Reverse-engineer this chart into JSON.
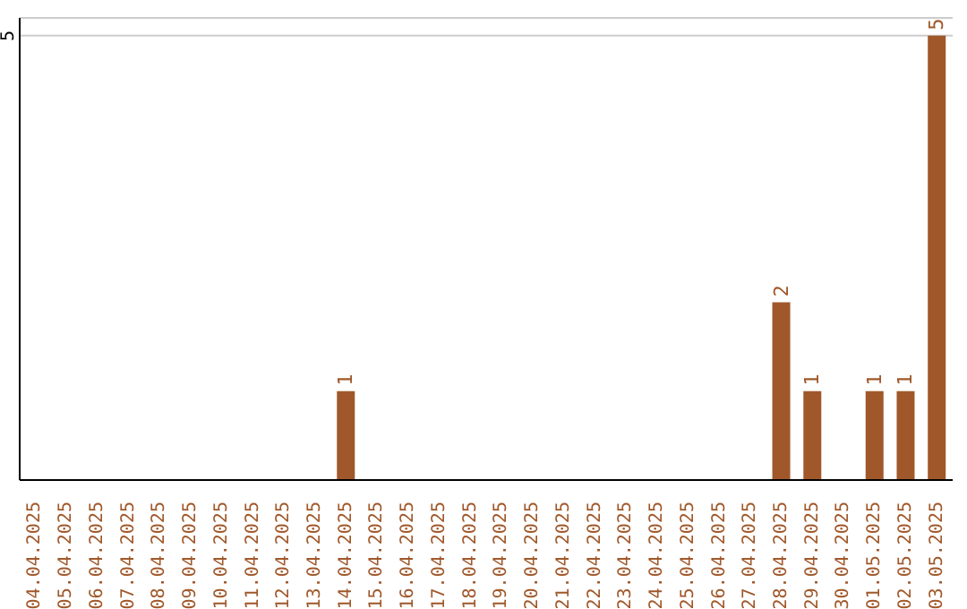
{
  "chart_data": {
    "type": "bar",
    "categories": [
      "04.04.2025",
      "05.04.2025",
      "06.04.2025",
      "07.04.2025",
      "08.04.2025",
      "09.04.2025",
      "10.04.2025",
      "11.04.2025",
      "12.04.2025",
      "13.04.2025",
      "14.04.2025",
      "15.04.2025",
      "16.04.2025",
      "17.04.2025",
      "18.04.2025",
      "19.04.2025",
      "20.04.2025",
      "21.04.2025",
      "22.04.2025",
      "23.04.2025",
      "24.04.2025",
      "25.04.2025",
      "26.04.2025",
      "27.04.2025",
      "28.04.2025",
      "29.04.2025",
      "30.04.2025",
      "01.05.2025",
      "02.05.2025",
      "03.05.2025"
    ],
    "values": [
      0,
      0,
      0,
      0,
      0,
      0,
      0,
      0,
      0,
      0,
      1,
      0,
      0,
      0,
      0,
      0,
      0,
      0,
      0,
      0,
      0,
      0,
      0,
      0,
      2,
      1,
      0,
      1,
      1,
      5
    ],
    "value_labels": [
      null,
      null,
      null,
      null,
      null,
      null,
      null,
      null,
      null,
      null,
      "1",
      null,
      null,
      null,
      null,
      null,
      null,
      null,
      null,
      null,
      null,
      null,
      null,
      null,
      "2",
      "1",
      null,
      "1",
      "1",
      "5"
    ],
    "color": "#a0582a",
    "ylim": [
      0,
      5.2
    ],
    "yticks": [
      5
    ],
    "grid": "y"
  }
}
